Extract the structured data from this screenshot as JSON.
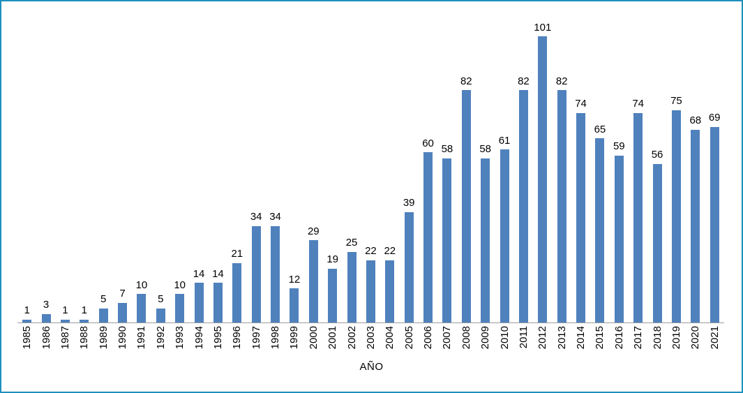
{
  "chart_data": {
    "type": "bar",
    "title": "",
    "xlabel": "AÑO",
    "ylabel": "",
    "categories": [
      "1985",
      "1986",
      "1987",
      "1988",
      "1989",
      "1990",
      "1991",
      "1992",
      "1993",
      "1994",
      "1995",
      "1996",
      "1997",
      "1998",
      "1999",
      "2000",
      "2001",
      "2002",
      "2003",
      "2004",
      "2005",
      "2006",
      "2007",
      "2008",
      "2009",
      "2010",
      "2011",
      "2012",
      "2013",
      "2014",
      "2015",
      "2016",
      "2017",
      "2018",
      "2019",
      "2020",
      "2021"
    ],
    "values": [
      1,
      3,
      1,
      1,
      5,
      7,
      10,
      5,
      10,
      14,
      14,
      21,
      34,
      34,
      12,
      29,
      19,
      25,
      22,
      22,
      39,
      60,
      58,
      82,
      58,
      61,
      82,
      101,
      82,
      74,
      65,
      59,
      74,
      56,
      75,
      68,
      69
    ],
    "ylim": [
      0,
      110
    ],
    "data_labels": true,
    "grid": false,
    "legend": false,
    "bar_color": "#4F81BD",
    "axis_line_color": "#9B9B9B",
    "frame_border_color": "#1E8FBE",
    "label_color": "#000000"
  }
}
